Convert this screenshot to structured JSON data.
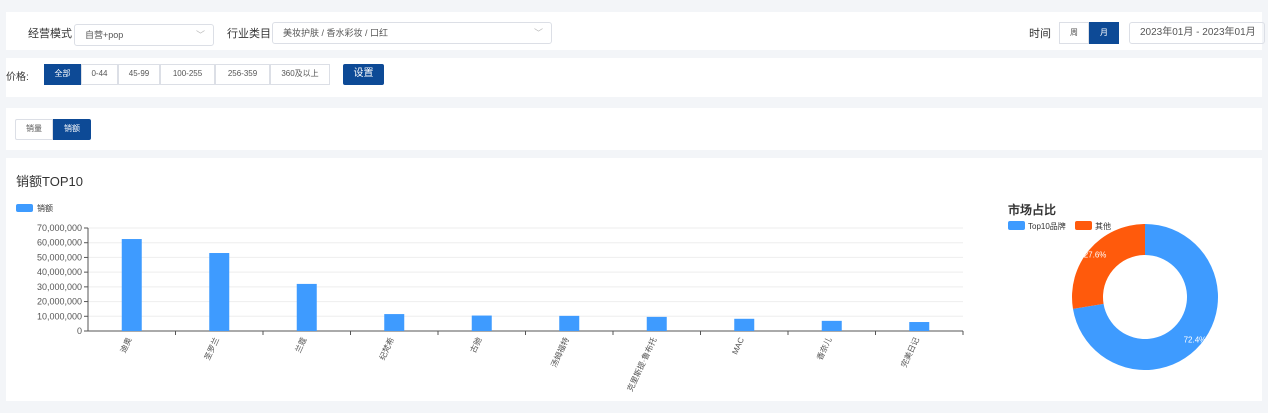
{
  "filters": {
    "mode_label": "经营模式",
    "mode_value": "自营+pop",
    "category_label": "行业类目",
    "category_value": "美妆护肤 / 香水彩妆 / 口红",
    "time_label": "时间",
    "week": "周",
    "month": "月",
    "date_range": "2023年01月 - 2023年01月"
  },
  "price": {
    "label": "价格:",
    "options": [
      "全部",
      "0-44",
      "45-99",
      "100-255",
      "256-359",
      "360及以上"
    ],
    "selected": 0,
    "set": "设置"
  },
  "metric_tabs": {
    "options": [
      "销量",
      "销额"
    ],
    "selected": 1
  },
  "chart_title": "销额TOP10",
  "chart_data": [
    {
      "type": "bar",
      "legend": "销额",
      "categories": [
        "迪奥",
        "圣罗兰",
        "兰蔻",
        "纪梵希",
        "古驰",
        "汤姆福特",
        "克里斯提·鲁布托",
        "MAC",
        "香奈儿",
        "完美日记"
      ],
      "values": [
        62500000,
        53000000,
        32000000,
        11500000,
        10500000,
        10300000,
        9600000,
        8300000,
        6900000,
        6100000
      ],
      "ylim": [
        0,
        70000000
      ],
      "yticks": [
        "0",
        "10,000,000",
        "20,000,000",
        "30,000,000",
        "40,000,000",
        "50,000,000",
        "60,000,000",
        "70,000,000"
      ],
      "color": "#3e9bff",
      "grid": true
    },
    {
      "type": "pie",
      "title": "市场占比",
      "labels": [
        "Top10品牌",
        "其他"
      ],
      "values": [
        72.4,
        27.6
      ],
      "data_labels": [
        "72.4%",
        "27.6%"
      ],
      "colors": [
        "#3e9bff",
        "#ff5a0c"
      ],
      "donut": true
    }
  ]
}
